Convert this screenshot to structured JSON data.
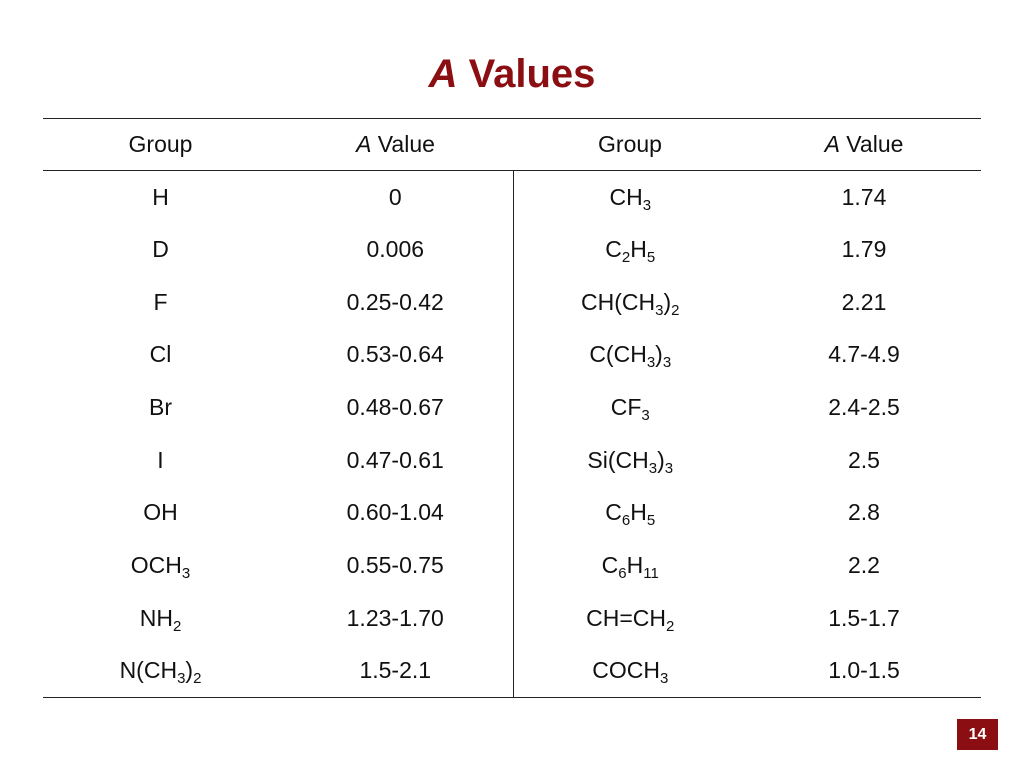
{
  "title": {
    "italic": "A",
    "rest": " Values"
  },
  "table": {
    "headers": [
      {
        "italic": "",
        "text": "Group"
      },
      {
        "italic": "A",
        "text": " Value"
      },
      {
        "italic": "",
        "text": "Group"
      },
      {
        "italic": "A",
        "text": " Value"
      }
    ],
    "rows": [
      {
        "group1": [
          [
            "H",
            ""
          ]
        ],
        "value1": "0",
        "group2": [
          [
            "CH",
            ""
          ],
          [
            "3",
            "sub"
          ]
        ],
        "value2": "1.74"
      },
      {
        "group1": [
          [
            "D",
            ""
          ]
        ],
        "value1": "0.006",
        "group2": [
          [
            "C",
            ""
          ],
          [
            "2",
            "sub"
          ],
          [
            "H",
            ""
          ],
          [
            "5",
            "sub"
          ]
        ],
        "value2": "1.79"
      },
      {
        "group1": [
          [
            "F",
            ""
          ]
        ],
        "value1": "0.25-0.42",
        "group2": [
          [
            "CH(CH",
            ""
          ],
          [
            "3",
            "sub"
          ],
          [
            ")",
            ""
          ],
          [
            "2",
            "sub"
          ]
        ],
        "value2": "2.21"
      },
      {
        "group1": [
          [
            "Cl",
            ""
          ]
        ],
        "value1": "0.53-0.64",
        "group2": [
          [
            "C(CH",
            ""
          ],
          [
            "3",
            "sub"
          ],
          [
            ")",
            ""
          ],
          [
            "3",
            "sub"
          ]
        ],
        "value2": "4.7-4.9"
      },
      {
        "group1": [
          [
            "Br",
            ""
          ]
        ],
        "value1": "0.48-0.67",
        "group2": [
          [
            "CF",
            ""
          ],
          [
            "3",
            "sub"
          ]
        ],
        "value2": "2.4-2.5"
      },
      {
        "group1": [
          [
            "I",
            ""
          ]
        ],
        "value1": "0.47-0.61",
        "group2": [
          [
            "Si(CH",
            ""
          ],
          [
            "3",
            "sub"
          ],
          [
            ")",
            ""
          ],
          [
            "3",
            "sub"
          ]
        ],
        "value2": "2.5"
      },
      {
        "group1": [
          [
            "OH",
            ""
          ]
        ],
        "value1": "0.60-1.04",
        "group2": [
          [
            "C",
            ""
          ],
          [
            "6",
            "sub"
          ],
          [
            "H",
            ""
          ],
          [
            "5",
            "sub"
          ]
        ],
        "value2": "2.8"
      },
      {
        "group1": [
          [
            "OCH",
            ""
          ],
          [
            "3",
            "sub"
          ]
        ],
        "value1": "0.55-0.75",
        "group2": [
          [
            "C",
            ""
          ],
          [
            "6",
            "sub"
          ],
          [
            "H",
            ""
          ],
          [
            "11",
            "sub"
          ]
        ],
        "value2": "2.2"
      },
      {
        "group1": [
          [
            "NH",
            ""
          ],
          [
            "2",
            "sub"
          ]
        ],
        "value1": "1.23-1.70",
        "group2": [
          [
            "CH=CH",
            ""
          ],
          [
            "2",
            "sub"
          ]
        ],
        "value2": "1.5-1.7"
      },
      {
        "group1": [
          [
            "N(CH",
            ""
          ],
          [
            "3",
            "sub"
          ],
          [
            ")",
            ""
          ],
          [
            "2",
            "sub"
          ]
        ],
        "value1": "1.5-2.1",
        "group2": [
          [
            "COCH",
            ""
          ],
          [
            "3",
            "sub"
          ]
        ],
        "value2": "1.0-1.5"
      }
    ]
  },
  "page_number": "14",
  "colors": {
    "accent": "#8b0e12",
    "text": "#111111",
    "rule": "#222222"
  }
}
